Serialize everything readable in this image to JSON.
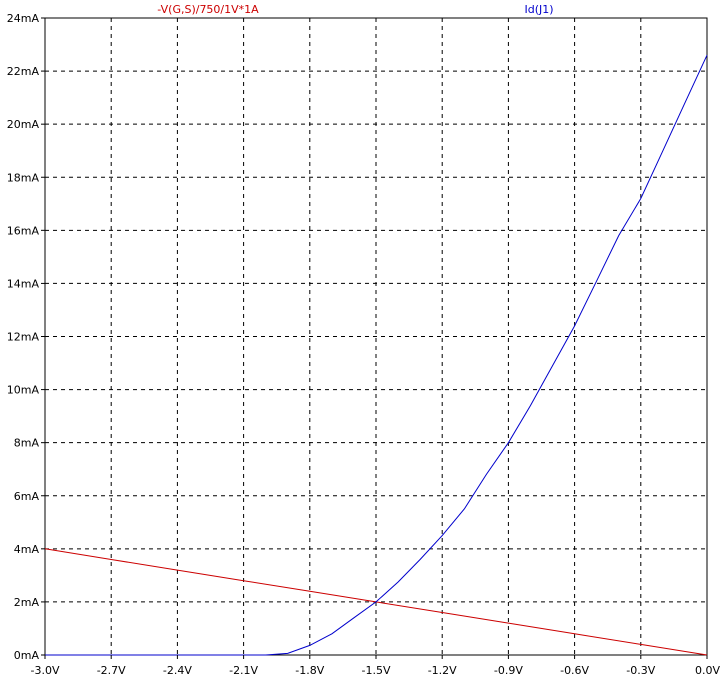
{
  "chart_data": {
    "type": "line",
    "title": "",
    "xlabel": "",
    "ylabel": "",
    "xlim": [
      -3.0,
      0.0
    ],
    "ylim": [
      0,
      24
    ],
    "grid": true,
    "grid_style": "dashed",
    "legend_placement": "top",
    "x_tick_values": [
      -3.0,
      -2.7,
      -2.4,
      -2.1,
      -1.8,
      -1.5,
      -1.2,
      -0.9,
      -0.6,
      -0.3,
      0.0
    ],
    "x_tick_labels": [
      "-3.0V",
      "-2.7V",
      "-2.4V",
      "-2.1V",
      "-1.8V",
      "-1.5V",
      "-1.2V",
      "-0.9V",
      "-0.6V",
      "-0.3V",
      "0.0V"
    ],
    "y_tick_values": [
      0,
      2,
      4,
      6,
      8,
      10,
      12,
      14,
      16,
      18,
      20,
      22,
      24
    ],
    "y_tick_labels": [
      "0mA",
      "2mA",
      "4mA",
      "6mA",
      "8mA",
      "10mA",
      "12mA",
      "14mA",
      "16mA",
      "18mA",
      "20mA",
      "22mA",
      "24mA"
    ],
    "series": [
      {
        "name": "-V(G,S)/750/1V*1A",
        "color": "#cc0000",
        "x": [
          -3.0,
          -2.7,
          -2.4,
          -2.1,
          -1.8,
          -1.5,
          -1.2,
          -0.9,
          -0.6,
          -0.3,
          0.0
        ],
        "y": [
          4.0,
          3.6,
          3.2,
          2.8,
          2.4,
          2.0,
          1.6,
          1.2,
          0.8,
          0.4,
          0.0
        ]
      },
      {
        "name": "Id(J1)",
        "color": "#0000cc",
        "x": [
          -3.0,
          -2.7,
          -2.4,
          -2.1,
          -2.0,
          -1.9,
          -1.8,
          -1.7,
          -1.6,
          -1.5,
          -1.4,
          -1.3,
          -1.2,
          -1.1,
          -1.0,
          -0.9,
          -0.8,
          -0.7,
          -0.6,
          -0.5,
          -0.4,
          -0.3,
          -0.2,
          -0.1,
          0.0
        ],
        "y": [
          0,
          0,
          0,
          0,
          0.0,
          0.06,
          0.36,
          0.8,
          1.4,
          2.0,
          2.75,
          3.6,
          4.5,
          5.5,
          6.8,
          8.0,
          9.4,
          10.9,
          12.4,
          14.1,
          15.8,
          17.2,
          19.0,
          20.8,
          22.6
        ]
      }
    ]
  }
}
